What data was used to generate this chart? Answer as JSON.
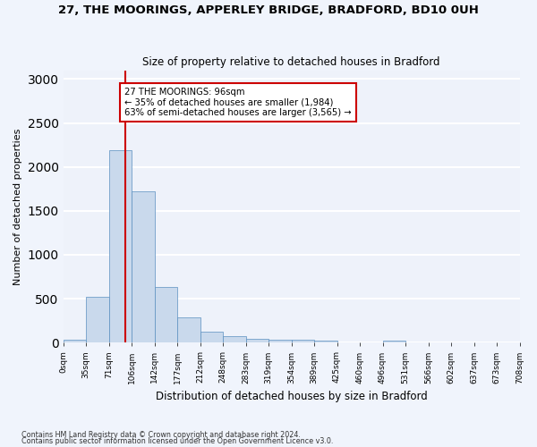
{
  "title1": "27, THE MOORINGS, APPERLEY BRIDGE, BRADFORD, BD10 0UH",
  "title2": "Size of property relative to detached houses in Bradford",
  "xlabel": "Distribution of detached houses by size in Bradford",
  "ylabel": "Number of detached properties",
  "bar_color": "#c9d9ec",
  "bar_edge_color": "#5a8fc0",
  "background_color": "#eef2fa",
  "grid_color": "#ffffff",
  "bin_labels": [
    "0sqm",
    "35sqm",
    "71sqm",
    "106sqm",
    "142sqm",
    "177sqm",
    "212sqm",
    "248sqm",
    "283sqm",
    "319sqm",
    "354sqm",
    "389sqm",
    "425sqm",
    "460sqm",
    "496sqm",
    "531sqm",
    "566sqm",
    "602sqm",
    "637sqm",
    "673sqm",
    "708sqm"
  ],
  "values": [
    30,
    520,
    2185,
    1720,
    635,
    290,
    125,
    75,
    40,
    35,
    35,
    25,
    5,
    5,
    20,
    5,
    5,
    5,
    5,
    5
  ],
  "ylim": [
    0,
    3100
  ],
  "yticks": [
    0,
    500,
    1000,
    1500,
    2000,
    2500,
    3000
  ],
  "bin_width": 35,
  "property_sqm": 96,
  "annotation_text": "27 THE MOORINGS: 96sqm\n← 35% of detached houses are smaller (1,984)\n63% of semi-detached houses are larger (3,565) →",
  "annotation_box_color": "#ffffff",
  "annotation_border_color": "#cc0000",
  "red_line_color": "#cc0000",
  "footer1": "Contains HM Land Registry data © Crown copyright and database right 2024.",
  "footer2": "Contains public sector information licensed under the Open Government Licence v3.0."
}
